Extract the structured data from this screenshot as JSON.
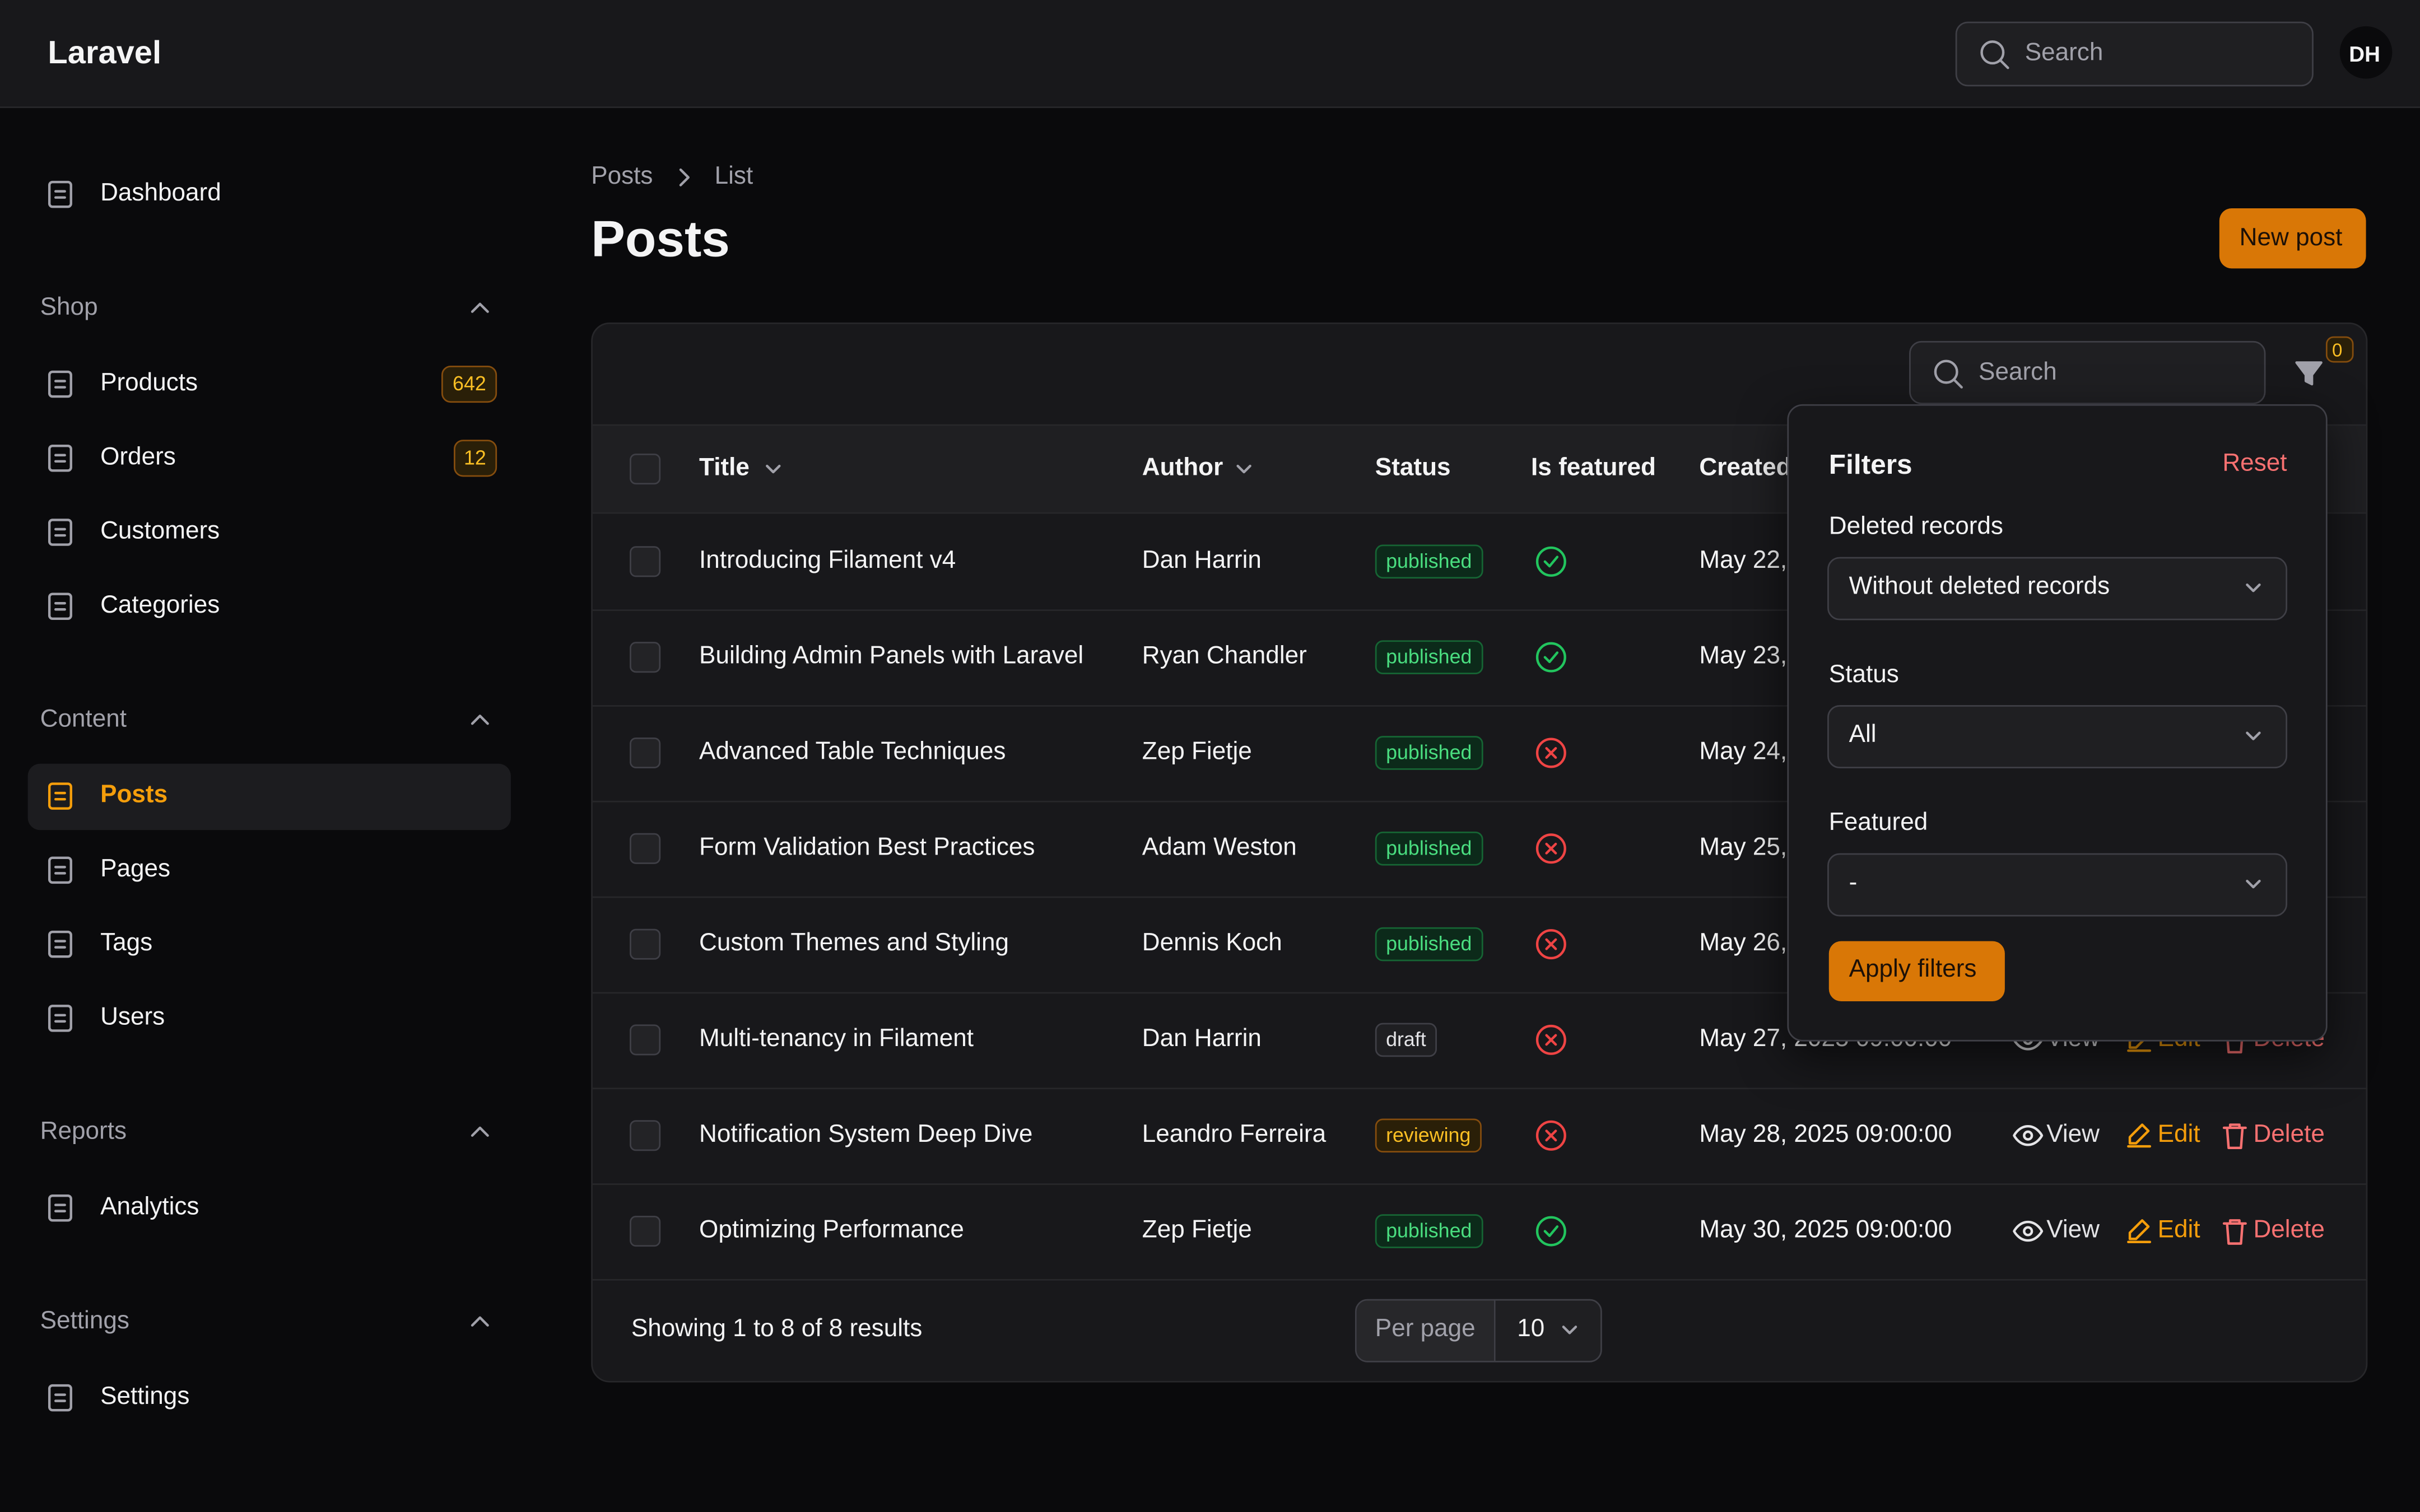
{
  "header": {
    "brand": "Laravel",
    "search_placeholder": "Search",
    "avatar": "DH"
  },
  "sidebar": {
    "items": [
      {
        "label": "Dashboard"
      }
    ],
    "groups": [
      {
        "label": "Shop",
        "items": [
          {
            "label": "Products",
            "badge": "642"
          },
          {
            "label": "Orders",
            "badge": "12"
          },
          {
            "label": "Customers"
          },
          {
            "label": "Categories"
          }
        ]
      },
      {
        "label": "Content",
        "items": [
          {
            "label": "Posts",
            "active": true
          },
          {
            "label": "Pages"
          },
          {
            "label": "Tags"
          },
          {
            "label": "Users"
          }
        ]
      },
      {
        "label": "Reports",
        "items": [
          {
            "label": "Analytics"
          }
        ]
      },
      {
        "label": "Settings",
        "items": [
          {
            "label": "Settings"
          }
        ]
      }
    ]
  },
  "breadcrumbs": [
    "Posts",
    "List"
  ],
  "page_title": "Posts",
  "new_button": "New post",
  "table": {
    "search_placeholder": "Search",
    "filter_count": "0",
    "columns": [
      "Title",
      "Author",
      "Status",
      "Is featured",
      "Created"
    ],
    "actions": [
      "View",
      "Edit",
      "Delete"
    ],
    "rows": [
      {
        "title": "Introducing Filament v4",
        "author": "Dan Harrin",
        "status": "published",
        "featured": true,
        "created": "May 22,"
      },
      {
        "title": "Building Admin Panels with Laravel",
        "author": "Ryan Chandler",
        "status": "published",
        "featured": true,
        "created": "May 23,"
      },
      {
        "title": "Advanced Table Techniques",
        "author": "Zep Fietje",
        "status": "published",
        "featured": false,
        "created": "May 24,"
      },
      {
        "title": "Form Validation Best Practices",
        "author": "Adam Weston",
        "status": "published",
        "featured": false,
        "created": "May 25,"
      },
      {
        "title": "Custom Themes and Styling",
        "author": "Dennis Koch",
        "status": "published",
        "featured": false,
        "created": "May 26,"
      },
      {
        "title": "Multi-tenancy in Filament",
        "author": "Dan Harrin",
        "status": "draft",
        "featured": false,
        "created": "May 27, 2025 09:00:00"
      },
      {
        "title": "Notification System Deep Dive",
        "author": "Leandro Ferreira",
        "status": "reviewing",
        "featured": false,
        "created": "May 28, 2025 09:00:00"
      },
      {
        "title": "Optimizing Performance",
        "author": "Zep Fietje",
        "status": "published",
        "featured": true,
        "created": "May 30, 2025 09:00:00"
      }
    ],
    "footer": {
      "summary": "Showing 1 to 8 of 8 results",
      "per_page_label": "Per page",
      "per_page_value": "10"
    }
  },
  "filters": {
    "title": "Filters",
    "reset": "Reset",
    "fields": [
      {
        "label": "Deleted records",
        "value": "Without deleted records"
      },
      {
        "label": "Status",
        "value": "All"
      },
      {
        "label": "Featured",
        "value": "-"
      }
    ],
    "apply": "Apply filters"
  }
}
